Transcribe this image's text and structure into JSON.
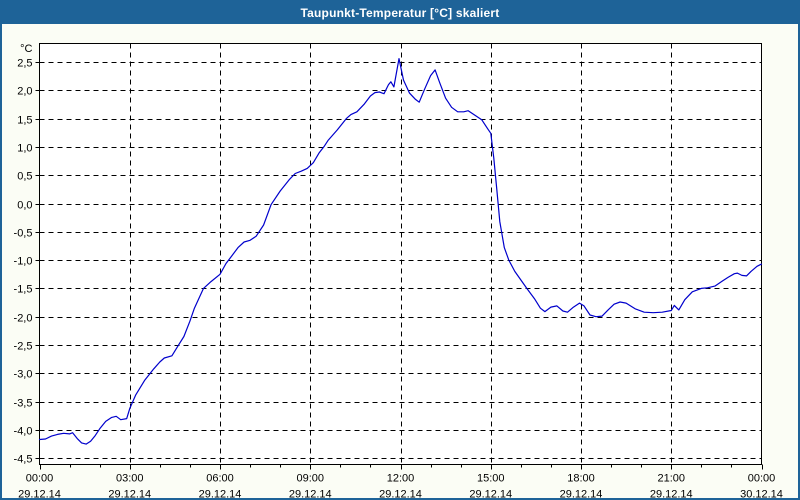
{
  "window": {
    "title": "Taupunkt-Temperatur [°C] skaliert"
  },
  "colors": {
    "titlebar_bg": "#1E6398",
    "frame": "#1E6398",
    "content_bg": "#FBFDF5",
    "plot_bg": "#FFFFFF",
    "grid": "#000000",
    "axis": "#000000",
    "line": "#0000CC",
    "title_text": "#FFFFFF",
    "label_text": "#000000"
  },
  "chart_data": {
    "type": "line",
    "title": "Taupunkt-Temperatur [°C] skaliert",
    "ylabel": "°C",
    "xlabel": "",
    "grid": "dashed",
    "legend": "none",
    "ylim": [
      -4.5,
      2.5
    ],
    "y_tick_step": 0.5,
    "y_tick_labels": [
      "2,5",
      "2,0",
      "1,5",
      "1,0",
      "0,5",
      "0,0",
      "-0,5",
      "-1,0",
      "-1,5",
      "-2,0",
      "-2,5",
      "-3,0",
      "-3,5",
      "-4,0",
      "-4,5"
    ],
    "y_tick_values": [
      2.5,
      2.0,
      1.5,
      1.0,
      0.5,
      0.0,
      -0.5,
      -1.0,
      -1.5,
      -2.0,
      -2.5,
      -3.0,
      -3.5,
      -4.0,
      -4.5
    ],
    "xlim_hours": [
      0,
      24
    ],
    "minor_x_tick_hours": 1,
    "x_ticks": [
      {
        "hour": 0,
        "time": "00:00",
        "date": "29.12.14"
      },
      {
        "hour": 3,
        "time": "03:00",
        "date": "29.12.14"
      },
      {
        "hour": 6,
        "time": "06:00",
        "date": "29.12.14"
      },
      {
        "hour": 9,
        "time": "09:00",
        "date": "29.12.14"
      },
      {
        "hour": 12,
        "time": "12:00",
        "date": "29.12.14"
      },
      {
        "hour": 15,
        "time": "15:00",
        "date": "29.12.14"
      },
      {
        "hour": 18,
        "time": "18:00",
        "date": "29.12.14"
      },
      {
        "hour": 21,
        "time": "21:00",
        "date": "29.12.14"
      },
      {
        "hour": 24,
        "time": "00:00",
        "date": "30.12.14"
      }
    ],
    "series": [
      {
        "name": "Taupunkt-Temperatur",
        "color": "#0000CC",
        "points": [
          [
            0.0,
            -4.17
          ],
          [
            0.2,
            -4.16
          ],
          [
            0.4,
            -4.11
          ],
          [
            0.6,
            -4.08
          ],
          [
            0.8,
            -4.06
          ],
          [
            1.0,
            -4.07
          ],
          [
            1.1,
            -4.05
          ],
          [
            1.25,
            -4.15
          ],
          [
            1.4,
            -4.23
          ],
          [
            1.55,
            -4.25
          ],
          [
            1.7,
            -4.2
          ],
          [
            1.85,
            -4.1
          ],
          [
            2.0,
            -3.98
          ],
          [
            2.2,
            -3.85
          ],
          [
            2.4,
            -3.78
          ],
          [
            2.55,
            -3.76
          ],
          [
            2.7,
            -3.82
          ],
          [
            2.9,
            -3.8
          ],
          [
            3.0,
            -3.62
          ],
          [
            3.2,
            -3.38
          ],
          [
            3.5,
            -3.12
          ],
          [
            3.8,
            -2.92
          ],
          [
            4.0,
            -2.8
          ],
          [
            4.15,
            -2.73
          ],
          [
            4.4,
            -2.69
          ],
          [
            4.6,
            -2.52
          ],
          [
            4.8,
            -2.35
          ],
          [
            5.0,
            -2.08
          ],
          [
            5.15,
            -1.85
          ],
          [
            5.45,
            -1.5
          ],
          [
            5.7,
            -1.38
          ],
          [
            6.0,
            -1.25
          ],
          [
            6.2,
            -1.06
          ],
          [
            6.4,
            -0.92
          ],
          [
            6.6,
            -0.78
          ],
          [
            6.8,
            -0.68
          ],
          [
            7.0,
            -0.65
          ],
          [
            7.2,
            -0.58
          ],
          [
            7.45,
            -0.38
          ],
          [
            7.7,
            -0.02
          ],
          [
            8.0,
            0.22
          ],
          [
            8.3,
            0.42
          ],
          [
            8.5,
            0.53
          ],
          [
            8.7,
            0.57
          ],
          [
            8.9,
            0.62
          ],
          [
            9.1,
            0.72
          ],
          [
            9.3,
            0.9
          ],
          [
            9.45,
            1.0
          ],
          [
            9.6,
            1.12
          ],
          [
            9.9,
            1.3
          ],
          [
            10.2,
            1.5
          ],
          [
            10.35,
            1.57
          ],
          [
            10.55,
            1.62
          ],
          [
            10.8,
            1.76
          ],
          [
            11.0,
            1.9
          ],
          [
            11.15,
            1.96
          ],
          [
            11.3,
            1.97
          ],
          [
            11.45,
            1.94
          ],
          [
            11.6,
            2.1
          ],
          [
            11.68,
            2.15
          ],
          [
            11.78,
            2.06
          ],
          [
            11.95,
            2.56
          ],
          [
            12.1,
            2.18
          ],
          [
            12.3,
            1.95
          ],
          [
            12.5,
            1.84
          ],
          [
            12.62,
            1.79
          ],
          [
            12.8,
            2.02
          ],
          [
            13.0,
            2.26
          ],
          [
            13.15,
            2.36
          ],
          [
            13.3,
            2.14
          ],
          [
            13.5,
            1.86
          ],
          [
            13.7,
            1.7
          ],
          [
            13.9,
            1.62
          ],
          [
            14.1,
            1.62
          ],
          [
            14.25,
            1.64
          ],
          [
            14.5,
            1.55
          ],
          [
            14.7,
            1.48
          ],
          [
            14.9,
            1.32
          ],
          [
            15.0,
            1.24
          ],
          [
            15.1,
            0.8
          ],
          [
            15.2,
            0.25
          ],
          [
            15.3,
            -0.32
          ],
          [
            15.45,
            -0.78
          ],
          [
            15.6,
            -1.0
          ],
          [
            15.8,
            -1.2
          ],
          [
            16.0,
            -1.35
          ],
          [
            16.2,
            -1.5
          ],
          [
            16.45,
            -1.68
          ],
          [
            16.65,
            -1.85
          ],
          [
            16.8,
            -1.91
          ],
          [
            17.0,
            -1.83
          ],
          [
            17.2,
            -1.81
          ],
          [
            17.4,
            -1.9
          ],
          [
            17.55,
            -1.92
          ],
          [
            17.75,
            -1.83
          ],
          [
            17.95,
            -1.76
          ],
          [
            18.1,
            -1.81
          ],
          [
            18.3,
            -1.97
          ],
          [
            18.5,
            -2.0
          ],
          [
            18.7,
            -1.99
          ],
          [
            18.9,
            -1.88
          ],
          [
            19.1,
            -1.78
          ],
          [
            19.3,
            -1.74
          ],
          [
            19.5,
            -1.76
          ],
          [
            19.8,
            -1.86
          ],
          [
            20.1,
            -1.92
          ],
          [
            20.4,
            -1.93
          ],
          [
            20.7,
            -1.92
          ],
          [
            21.0,
            -1.89
          ],
          [
            21.1,
            -1.8
          ],
          [
            21.25,
            -1.88
          ],
          [
            21.45,
            -1.7
          ],
          [
            21.7,
            -1.56
          ],
          [
            22.0,
            -1.5
          ],
          [
            22.2,
            -1.49
          ],
          [
            22.45,
            -1.46
          ],
          [
            22.7,
            -1.37
          ],
          [
            22.9,
            -1.3
          ],
          [
            23.1,
            -1.24
          ],
          [
            23.2,
            -1.23
          ],
          [
            23.35,
            -1.27
          ],
          [
            23.5,
            -1.28
          ],
          [
            23.65,
            -1.2
          ],
          [
            23.85,
            -1.11
          ],
          [
            24.0,
            -1.07
          ]
        ]
      }
    ]
  }
}
